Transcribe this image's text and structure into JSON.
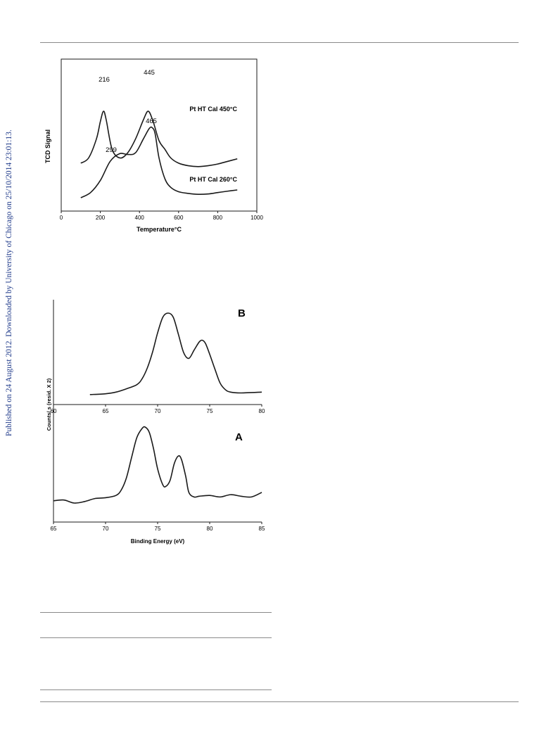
{
  "side_note": "Published on 24 August 2012. Downloaded by University of Chicago on 25/10/2014 23:01:13.",
  "chart_data": [
    {
      "type": "line",
      "xlabel": "Temperature°C",
      "ylabel": "TCD Signal",
      "xlim": [
        0,
        1000
      ],
      "xticks": [
        "0",
        "200",
        "400",
        "600",
        "800",
        "1000"
      ],
      "series": [
        {
          "name": "Pt HT Cal 450°C",
          "x": [
            100,
            140,
            180,
            200,
            216,
            230,
            260,
            300,
            340,
            380,
            420,
            445,
            470,
            500,
            530,
            560,
            600,
            650,
            700,
            750,
            800,
            850,
            900
          ],
          "y": [
            2.2,
            2.5,
            3.6,
            4.6,
            5.2,
            4.7,
            3.0,
            2.5,
            2.8,
            3.6,
            4.7,
            5.2,
            4.6,
            3.5,
            3.0,
            2.5,
            2.2,
            2.05,
            2.0,
            2.05,
            2.15,
            2.3,
            2.45
          ]
        },
        {
          "name": "Pt HT Cal 260°C",
          "x": [
            100,
            150,
            200,
            250,
            299,
            340,
            380,
            420,
            450,
            465,
            480,
            500,
            530,
            560,
            600,
            650,
            700,
            750,
            800,
            850,
            900
          ],
          "y": [
            0.2,
            0.5,
            1.2,
            2.3,
            2.75,
            2.7,
            2.8,
            3.6,
            4.2,
            4.25,
            3.9,
            2.5,
            1.3,
            0.8,
            0.55,
            0.45,
            0.4,
            0.42,
            0.5,
            0.58,
            0.65
          ]
        }
      ],
      "annotations": [
        "216",
        "445",
        "299",
        "465"
      ]
    },
    {
      "type": "line",
      "title": "B",
      "xlim": [
        60,
        80
      ],
      "xticks": [
        "60",
        "65",
        "70",
        "75",
        "80"
      ],
      "ylabel": "Counts/ s (resid. X 2)",
      "series": [
        {
          "name": "B",
          "x": [
            63.5,
            65,
            66,
            67,
            68,
            68.5,
            69,
            69.5,
            70,
            70.5,
            71,
            71.5,
            72,
            72.5,
            73,
            73.5,
            74,
            74.3,
            74.6,
            75,
            75.5,
            76,
            76.5,
            77,
            78,
            80
          ],
          "y": [
            0.01,
            0.02,
            0.04,
            0.08,
            0.13,
            0.2,
            0.33,
            0.52,
            0.76,
            0.95,
            1.0,
            0.95,
            0.74,
            0.52,
            0.45,
            0.55,
            0.65,
            0.67,
            0.63,
            0.5,
            0.32,
            0.15,
            0.07,
            0.04,
            0.03,
            0.04
          ]
        }
      ]
    },
    {
      "type": "line",
      "title": "A",
      "xlim": [
        65,
        85
      ],
      "xticks": [
        "65",
        "70",
        "75",
        "80",
        "85"
      ],
      "xlabel": "Binding Energy (eV)",
      "series": [
        {
          "name": "A",
          "x": [
            65,
            66,
            67,
            68,
            69,
            70,
            71,
            71.5,
            72,
            72.5,
            73,
            73.5,
            73.8,
            74.2,
            74.6,
            75,
            75.5,
            75.8,
            76.2,
            76.6,
            77,
            77.3,
            77.7,
            78,
            78.5,
            79,
            80,
            81,
            82,
            83,
            84,
            85
          ],
          "y": [
            0.03,
            0.04,
            0.0,
            0.02,
            0.06,
            0.07,
            0.1,
            0.17,
            0.33,
            0.6,
            0.86,
            0.98,
            1.0,
            0.93,
            0.72,
            0.45,
            0.24,
            0.22,
            0.3,
            0.52,
            0.62,
            0.57,
            0.35,
            0.14,
            0.08,
            0.09,
            0.1,
            0.08,
            0.11,
            0.09,
            0.08,
            0.14
          ]
        }
      ]
    }
  ]
}
